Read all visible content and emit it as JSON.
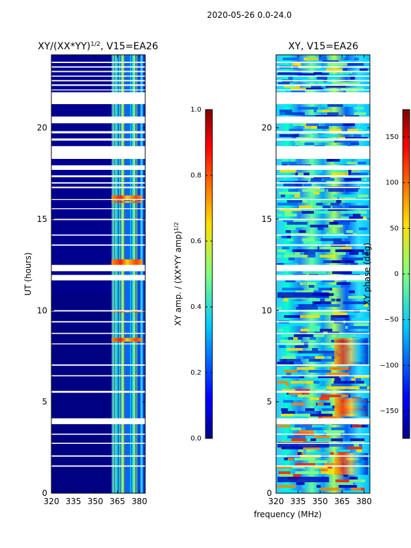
{
  "figure_title": "2020-05-26 0.0-24.0",
  "shared_xlabel": "frequency (MHz)",
  "chart_data": [
    {
      "type": "heatmap",
      "title": "XY/(XX*YY)1/2, V15=EA26",
      "title_main": "XY/(XX*YY)",
      "title_sup": "1/2",
      "title_tail": ", V15=EA26",
      "xlabel": "frequency (MHz)",
      "ylabel": "UT (hours)",
      "xlim": [
        320,
        384
      ],
      "ylim": [
        0,
        24
      ],
      "xticks": [
        320,
        335,
        350,
        365,
        380
      ],
      "yticks": [
        0,
        5,
        10,
        15,
        20
      ],
      "band_start_mhz": 361,
      "colorbar": {
        "label": "XY amp. / (XX*YY amp)1/2",
        "label_main": "XY amp. / (XX*YY amp)",
        "label_sup": "1/2",
        "range": [
          0.0,
          1.0
        ],
        "ticks": [
          "0.0",
          "0.2",
          "0.4",
          "0.6",
          "0.8",
          "1.0"
        ],
        "tick_values": [
          0.0,
          0.2,
          0.4,
          0.6,
          0.8,
          1.0
        ]
      }
    },
    {
      "type": "heatmap",
      "title": "XY, V15=EA26",
      "xlabel": "frequency (MHz)",
      "ylabel": "",
      "xlim": [
        320,
        384
      ],
      "ylim": [
        0,
        24
      ],
      "xticks": [
        320,
        335,
        350,
        365,
        380
      ],
      "yticks": [
        0,
        5,
        10,
        15,
        20
      ],
      "colorbar": {
        "label": "XY phase (deg)",
        "range": [
          -180,
          180
        ],
        "ticks": [
          "−150",
          "−100",
          "−50",
          "0",
          "50",
          "100",
          "150"
        ],
        "tick_values": [
          -150,
          -100,
          -50,
          0,
          50,
          100,
          150
        ]
      }
    }
  ],
  "flagged_ut_hours": [
    [
      23.55,
      23.62
    ],
    [
      23.3,
      23.37
    ],
    [
      23.05,
      23.12
    ],
    [
      22.8,
      22.86
    ],
    [
      22.55,
      22.62
    ],
    [
      22.3,
      22.38
    ],
    [
      22.05,
      22.1
    ],
    [
      21.3,
      21.95
    ],
    [
      20.25,
      20.62
    ],
    [
      19.7,
      19.82
    ],
    [
      19.3,
      19.42
    ],
    [
      18.3,
      19.0
    ],
    [
      17.7,
      17.95
    ],
    [
      17.3,
      17.4
    ],
    [
      16.95,
      17.02
    ],
    [
      16.7,
      16.78
    ],
    [
      16.05,
      16.1
    ],
    [
      15.55,
      15.6
    ],
    [
      14.95,
      15.02
    ],
    [
      14.1,
      14.16
    ],
    [
      13.55,
      13.62
    ],
    [
      12.15,
      12.5
    ],
    [
      11.65,
      11.95
    ],
    [
      9.95,
      10.02
    ],
    [
      9.35,
      9.42
    ],
    [
      8.72,
      8.78
    ],
    [
      8.15,
      8.2
    ],
    [
      6.98,
      7.05
    ],
    [
      6.4,
      6.46
    ],
    [
      5.5,
      5.6
    ],
    [
      3.78,
      4.1
    ],
    [
      3.2,
      3.26
    ],
    [
      2.7,
      2.76
    ],
    [
      2.0,
      2.07
    ],
    [
      1.45,
      1.52
    ]
  ]
}
